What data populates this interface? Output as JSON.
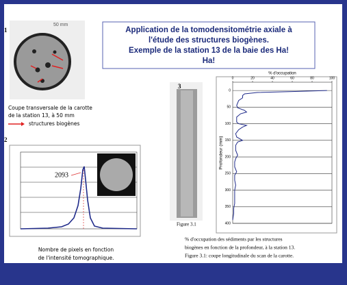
{
  "title": [
    "Application de la tomodensitométrie axiale à",
    "l'étude des structures biogènes.",
    "Exemple de la station 13 de la baie des Ha!",
    "Ha!"
  ],
  "panel1": {
    "label": "1",
    "scale": "50 mm",
    "caption": [
      "Coupe transversale de la carotte",
      "de la station 13, à 50 mm"
    ],
    "legend": "structures biogènes"
  },
  "panel2": {
    "label": "2",
    "peak_label": "2093",
    "caption": [
      "Nombre de pixels en fonction",
      "de l'intensité tomographique."
    ]
  },
  "panel3": {
    "label": "3",
    "figure_label": "Figure 3.1",
    "caption": [
      "% d'occupation des sédiments par les structures",
      "biogènes en fonction de la profondeur, à la station 13.",
      "Figure 3.1: coupe longitudinale du scan de la carotte."
    ]
  },
  "chart_data": {
    "type": "line",
    "x_label": "% d'occupation",
    "y_label": "Profondeur (mm)",
    "x": [
      95,
      60,
      25,
      12,
      10,
      10,
      6,
      4,
      5,
      12,
      14,
      8,
      4,
      4,
      6,
      14,
      10,
      6,
      3,
      4,
      10,
      5,
      3,
      3,
      5,
      3,
      2,
      2,
      4,
      2,
      2,
      3,
      2,
      2,
      2,
      1,
      1,
      0
    ],
    "y": [
      0,
      3,
      6,
      10,
      15,
      22,
      30,
      45,
      52,
      60,
      65,
      70,
      80,
      95,
      100,
      105,
      110,
      118,
      130,
      140,
      150,
      155,
      165,
      180,
      195,
      205,
      215,
      230,
      245,
      255,
      270,
      285,
      300,
      320,
      340,
      355,
      370,
      390
    ],
    "color": "#1f2a8a",
    "xlim": [
      0,
      100
    ],
    "xticks": [
      0,
      20,
      40,
      60,
      80,
      100
    ],
    "ylim": [
      -25,
      400
    ],
    "yticks": [
      0,
      50,
      100,
      150,
      200,
      250,
      300,
      350,
      400
    ],
    "grid": true
  }
}
